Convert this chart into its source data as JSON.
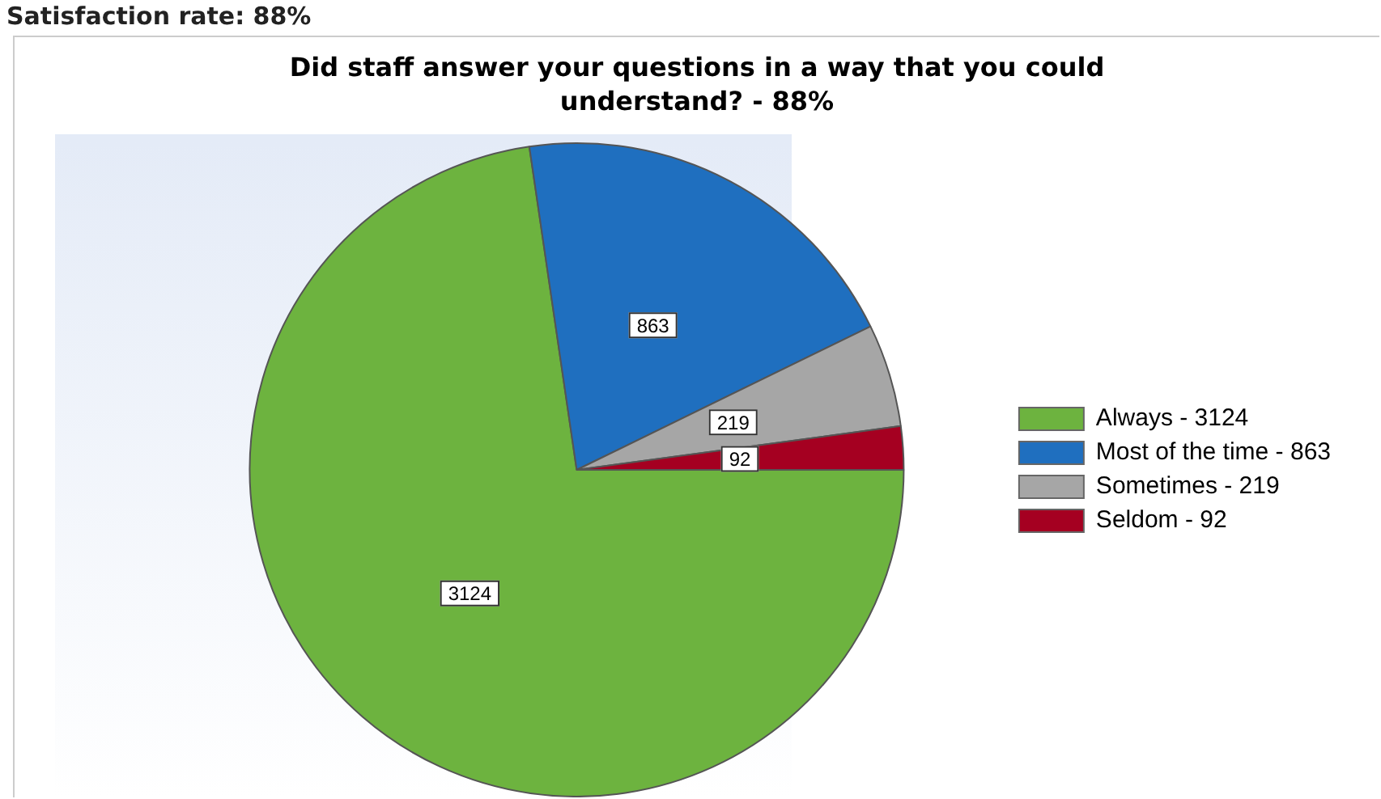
{
  "chart_data": {
    "type": "pie",
    "title": "Did staff answer your questions in a way that you could understand? - 88%",
    "annotations": [
      "Satisfaction rate: 88%"
    ],
    "categories": [
      "Always - 3124",
      "Most of the time - 863",
      "Sometimes - 219",
      "Seldom - 92"
    ],
    "values": [
      3124,
      863,
      219,
      92
    ],
    "colors": [
      "#6db33f",
      "#1f6fbf",
      "#a6a6a6",
      "#a50021"
    ],
    "data_labels": true,
    "legend": "right"
  }
}
